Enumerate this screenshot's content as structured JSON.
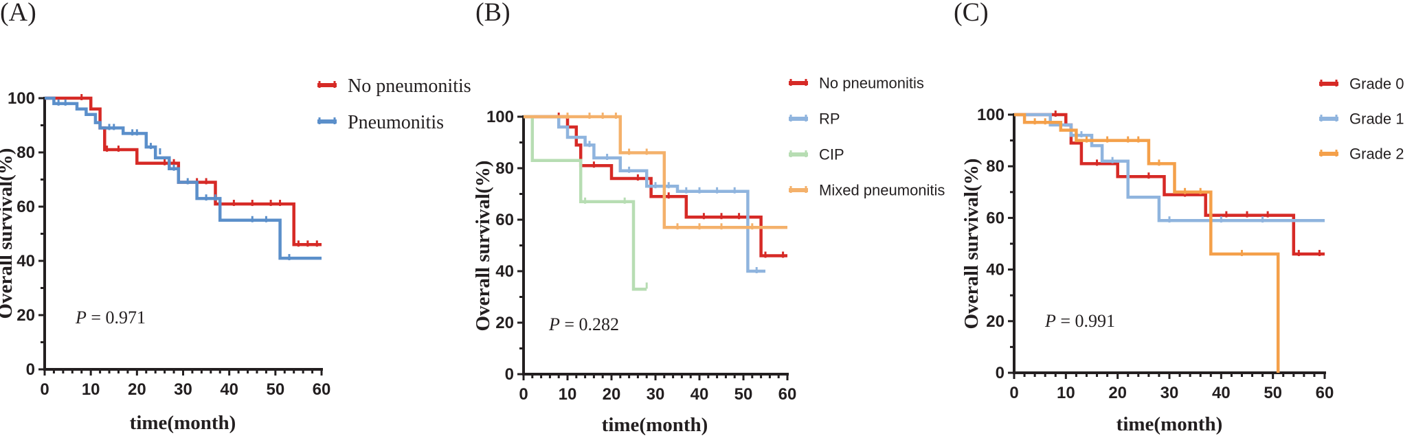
{
  "chart_data": [
    {
      "id": "A",
      "type": "line",
      "panel_label": "(A)",
      "title": "",
      "xlabel": "time(month)",
      "ylabel": "Overall survival(%)",
      "xlim": [
        0,
        60
      ],
      "ylim": [
        0,
        100
      ],
      "xticks": [
        "0",
        "10",
        "20",
        "30",
        "40",
        "50",
        "60"
      ],
      "yticks": [
        "0",
        "20",
        "40",
        "60",
        "80",
        "100"
      ],
      "annotation": {
        "p_symbol": "P",
        "p_text": "= 0.971"
      },
      "legend_position": "top-right",
      "series": [
        {
          "name": "No pneumonitis",
          "color": "#d62a26",
          "points": [
            [
              0,
              100
            ],
            [
              10,
              100
            ],
            [
              10,
              96
            ],
            [
              12,
              96
            ],
            [
              12,
              89
            ],
            [
              13,
              89
            ],
            [
              13,
              81
            ],
            [
              20,
              81
            ],
            [
              20,
              76
            ],
            [
              29,
              76
            ],
            [
              29,
              69
            ],
            [
              37,
              69
            ],
            [
              37,
              61
            ],
            [
              54,
              61
            ],
            [
              54,
              46
            ],
            [
              60,
              46
            ]
          ],
          "censors": [
            [
              8,
              100
            ],
            [
              13.5,
              81
            ],
            [
              16,
              81
            ],
            [
              26,
              76
            ],
            [
              28,
              76
            ],
            [
              33,
              69
            ],
            [
              35,
              69
            ],
            [
              41,
              61
            ],
            [
              45,
              61
            ],
            [
              49,
              61
            ],
            [
              51,
              61
            ],
            [
              55,
              46
            ],
            [
              57,
              46
            ],
            [
              59,
              46
            ]
          ]
        },
        {
          "name": "Pneumonitis",
          "color": "#5b8fca",
          "points": [
            [
              0,
              100
            ],
            [
              2,
              100
            ],
            [
              2,
              98
            ],
            [
              7,
              98
            ],
            [
              7,
              96
            ],
            [
              9,
              96
            ],
            [
              9,
              94
            ],
            [
              11,
              94
            ],
            [
              11,
              91
            ],
            [
              12,
              91
            ],
            [
              12,
              89
            ],
            [
              17,
              89
            ],
            [
              17,
              87
            ],
            [
              22,
              87
            ],
            [
              22,
              82
            ],
            [
              24,
              82
            ],
            [
              24,
              78
            ],
            [
              27,
              78
            ],
            [
              27,
              74
            ],
            [
              29,
              74
            ],
            [
              29,
              69
            ],
            [
              33,
              69
            ],
            [
              33,
              63
            ],
            [
              38,
              63
            ],
            [
              38,
              55
            ],
            [
              51,
              55
            ],
            [
              51,
              41
            ],
            [
              60,
              41
            ]
          ],
          "censors": [
            [
              3,
              98
            ],
            [
              4.5,
              98
            ],
            [
              14,
              89
            ],
            [
              15,
              89
            ],
            [
              19,
              87
            ],
            [
              20,
              87
            ],
            [
              23,
              82
            ],
            [
              25,
              80
            ],
            [
              28,
              74
            ],
            [
              31,
              69
            ],
            [
              35,
              63
            ],
            [
              37,
              63
            ],
            [
              45,
              55
            ],
            [
              48,
              55
            ],
            [
              53,
              41
            ]
          ]
        }
      ]
    },
    {
      "id": "B",
      "type": "line",
      "panel_label": "(B)",
      "title": "",
      "xlabel": "time(month)",
      "ylabel": "Overall survival(%)",
      "xlim": [
        0,
        60
      ],
      "ylim": [
        0,
        100
      ],
      "xticks": [
        "0",
        "10",
        "20",
        "30",
        "40",
        "50",
        "60"
      ],
      "yticks": [
        "0",
        "20",
        "40",
        "60",
        "80",
        "100"
      ],
      "annotation": {
        "p_symbol": "P",
        "p_text": "= 0.282"
      },
      "legend_position": "top-right",
      "series": [
        {
          "name": "No pneumonitis",
          "color": "#d62a26",
          "points": [
            [
              0,
              100
            ],
            [
              10,
              100
            ],
            [
              10,
              96
            ],
            [
              12,
              96
            ],
            [
              12,
              89
            ],
            [
              13,
              89
            ],
            [
              13,
              81
            ],
            [
              20,
              81
            ],
            [
              20,
              76
            ],
            [
              29,
              76
            ],
            [
              29,
              69
            ],
            [
              37,
              69
            ],
            [
              37,
              61
            ],
            [
              54,
              61
            ],
            [
              54,
              46
            ],
            [
              60,
              46
            ]
          ],
          "censors": [
            [
              8,
              100
            ],
            [
              16,
              81
            ],
            [
              26,
              76
            ],
            [
              28,
              76
            ],
            [
              33,
              69
            ],
            [
              41,
              61
            ],
            [
              45,
              61
            ],
            [
              49,
              61
            ],
            [
              55,
              46
            ],
            [
              59,
              46
            ]
          ]
        },
        {
          "name": "RP",
          "color": "#8fb4de",
          "points": [
            [
              0,
              100
            ],
            [
              8,
              100
            ],
            [
              8,
              96
            ],
            [
              10,
              96
            ],
            [
              10,
              92
            ],
            [
              14,
              92
            ],
            [
              14,
              89
            ],
            [
              16,
              89
            ],
            [
              16,
              84
            ],
            [
              22,
              84
            ],
            [
              22,
              79
            ],
            [
              28,
              79
            ],
            [
              28,
              73
            ],
            [
              35,
              73
            ],
            [
              35,
              71
            ],
            [
              51,
              71
            ],
            [
              51,
              40
            ],
            [
              55,
              40
            ]
          ],
          "censors": [
            [
              15,
              89
            ],
            [
              19,
              84
            ],
            [
              24,
              79
            ],
            [
              30,
              73
            ],
            [
              33,
              73
            ],
            [
              37,
              71
            ],
            [
              40,
              71
            ],
            [
              44,
              71
            ],
            [
              48,
              71
            ],
            [
              53,
              40
            ]
          ]
        },
        {
          "name": "CIP",
          "color": "#b7ddb3",
          "points": [
            [
              0,
              100
            ],
            [
              2,
              100
            ],
            [
              2,
              83
            ],
            [
              13,
              83
            ],
            [
              13,
              67
            ],
            [
              25,
              67
            ],
            [
              25,
              33
            ],
            [
              28,
              33
            ]
          ],
          "censors": [
            [
              14,
              67
            ],
            [
              23,
              67
            ],
            [
              28,
              34
            ]
          ]
        },
        {
          "name": "Mixed pneumonitis",
          "color": "#f4b16b",
          "points": [
            [
              0,
              100
            ],
            [
              22,
              100
            ],
            [
              22,
              86
            ],
            [
              32,
              86
            ],
            [
              32,
              57
            ],
            [
              60,
              57
            ]
          ],
          "censors": [
            [
              10,
              100
            ],
            [
              15,
              100
            ],
            [
              18,
              100
            ],
            [
              21,
              100
            ],
            [
              24,
              86
            ],
            [
              28,
              86
            ],
            [
              35,
              57
            ],
            [
              40,
              57
            ],
            [
              45,
              57
            ],
            [
              52,
              57
            ]
          ]
        }
      ]
    },
    {
      "id": "C",
      "type": "line",
      "panel_label": "(C)",
      "title": "",
      "xlabel": "time(month)",
      "ylabel": "Overall survival(%)",
      "xlim": [
        0,
        60
      ],
      "ylim": [
        0,
        100
      ],
      "xticks": [
        "0",
        "10",
        "20",
        "30",
        "40",
        "50",
        "60"
      ],
      "yticks": [
        "0",
        "20",
        "40",
        "60",
        "80",
        "100"
      ],
      "annotation": {
        "p_symbol": "P",
        "p_text": "= 0.991"
      },
      "legend_position": "top-right",
      "series": [
        {
          "name": "Grade 0",
          "color": "#d62a26",
          "points": [
            [
              0,
              100
            ],
            [
              10,
              100
            ],
            [
              10,
              96
            ],
            [
              11,
              96
            ],
            [
              11,
              89
            ],
            [
              13,
              89
            ],
            [
              13,
              81
            ],
            [
              20,
              81
            ],
            [
              20,
              76
            ],
            [
              29,
              76
            ],
            [
              29,
              69
            ],
            [
              37,
              69
            ],
            [
              37,
              61
            ],
            [
              54,
              61
            ],
            [
              54,
              46
            ],
            [
              60,
              46
            ]
          ],
          "censors": [
            [
              8,
              100
            ],
            [
              16,
              81
            ],
            [
              26,
              76
            ],
            [
              33,
              69
            ],
            [
              41,
              61
            ],
            [
              45,
              61
            ],
            [
              49,
              61
            ],
            [
              55,
              46
            ],
            [
              59,
              46
            ]
          ]
        },
        {
          "name": "Grade 1",
          "color": "#8fb4de",
          "points": [
            [
              0,
              100
            ],
            [
              7,
              100
            ],
            [
              7,
              96
            ],
            [
              11,
              96
            ],
            [
              11,
              92
            ],
            [
              15,
              92
            ],
            [
              15,
              88
            ],
            [
              17,
              88
            ],
            [
              17,
              82
            ],
            [
              22,
              82
            ],
            [
              22,
              68
            ],
            [
              28,
              68
            ],
            [
              28,
              59
            ],
            [
              60,
              59
            ]
          ],
          "censors": [
            [
              13,
              92
            ],
            [
              19,
              82
            ],
            [
              30,
              59
            ],
            [
              40,
              59
            ],
            [
              48,
              59
            ]
          ]
        },
        {
          "name": "Grade 2",
          "color": "#f4a04a",
          "points": [
            [
              0,
              100
            ],
            [
              2,
              100
            ],
            [
              2,
              97
            ],
            [
              9,
              97
            ],
            [
              9,
              94
            ],
            [
              12,
              94
            ],
            [
              12,
              90
            ],
            [
              26,
              90
            ],
            [
              26,
              81
            ],
            [
              31,
              81
            ],
            [
              31,
              70
            ],
            [
              38,
              70
            ],
            [
              38,
              46
            ],
            [
              51,
              46
            ],
            [
              51,
              0
            ]
          ],
          "censors": [
            [
              4,
              97
            ],
            [
              6,
              97
            ],
            [
              14,
              90
            ],
            [
              18,
              90
            ],
            [
              22,
              90
            ],
            [
              24,
              90
            ],
            [
              28,
              81
            ],
            [
              33,
              70
            ],
            [
              36,
              70
            ],
            [
              44,
              46
            ]
          ]
        }
      ]
    }
  ]
}
